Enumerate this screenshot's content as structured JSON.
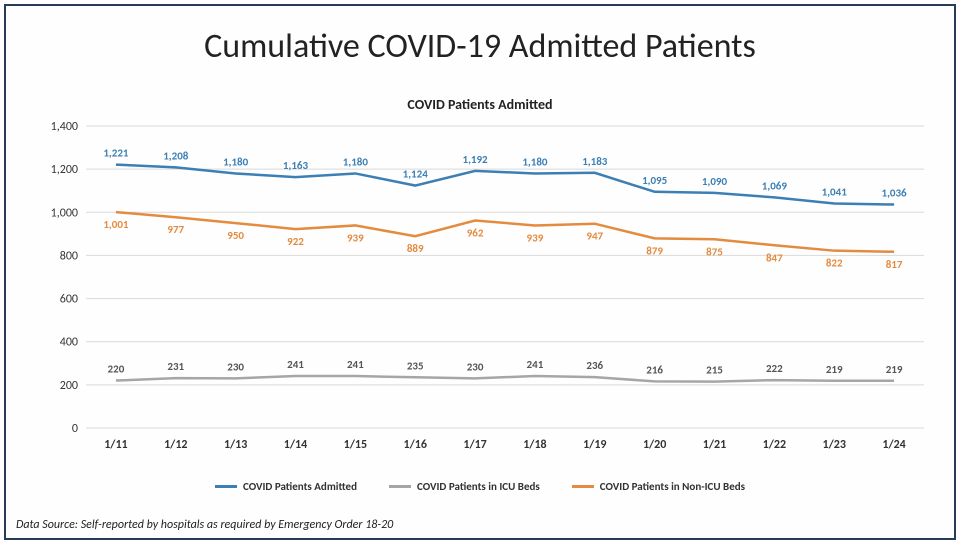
{
  "title": "Cumulative COVID-19 Admitted Patients",
  "subtitle": "COVID Patients Admitted",
  "source": "Data Source: Self-reported by hospitals as required by Emergency Order 18-20",
  "chart": {
    "type": "line",
    "ylim": [
      0,
      1400
    ],
    "ytick_step": 200,
    "yticks": [
      0,
      200,
      400,
      600,
      800,
      1000,
      1200,
      1400
    ],
    "categories": [
      "1/11",
      "1/12",
      "1/13",
      "1/14",
      "1/15",
      "1/16",
      "1/17",
      "1/18",
      "1/19",
      "1/20",
      "1/21",
      "1/22",
      "1/23",
      "1/24"
    ],
    "grid_color": "#d9d9d9",
    "background_color": "#ffffff",
    "series": [
      {
        "name": "COVID Patients Admitted",
        "color": "#3b7fb5",
        "values": [
          1221,
          1208,
          1180,
          1163,
          1180,
          1124,
          1192,
          1180,
          1183,
          1095,
          1090,
          1069,
          1041,
          1036
        ],
        "label_color": "#3b7fb5"
      },
      {
        "name": "COVID Patients in ICU Beds",
        "color": "#a6a6a6",
        "values": [
          220,
          231,
          230,
          241,
          241,
          235,
          230,
          241,
          236,
          216,
          215,
          222,
          219,
          219
        ],
        "label_color": "#555555"
      },
      {
        "name": "COVID Patients in Non-ICU Beds",
        "color": "#e38b3f",
        "values": [
          1001,
          977,
          950,
          922,
          939,
          889,
          962,
          939,
          947,
          879,
          875,
          847,
          822,
          817
        ],
        "label_color": "#e38b3f"
      }
    ]
  }
}
